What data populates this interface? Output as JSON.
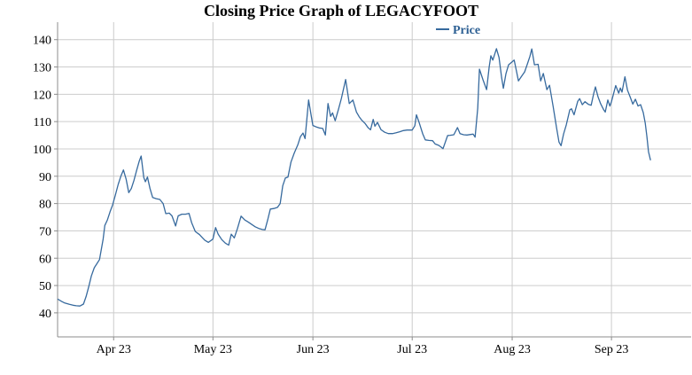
{
  "page": {
    "title": "Closing Price Graph of LEGACYFOOT",
    "legend": {
      "label": "Price"
    }
  },
  "chart_data": {
    "type": "line",
    "title": "Closing Price Graph of LEGACYFOOT",
    "xlabel": "",
    "ylabel": "",
    "x_unit": "days since Apr 1 2023 (series spans mid-Mar 2023 to mid-Sep 2023)",
    "grid": true,
    "legend_position": "top-center",
    "y_ticks": [
      40,
      50,
      60,
      70,
      80,
      90,
      100,
      110,
      120,
      130,
      140
    ],
    "x_ticks": [
      {
        "label": "Apr 23",
        "d": 0
      },
      {
        "label": "May 23",
        "d": 30.3
      },
      {
        "label": "Jun 23",
        "d": 60.8
      },
      {
        "label": "Jul 23",
        "d": 91.1
      },
      {
        "label": "Aug 23",
        "d": 121.6
      },
      {
        "label": "Sep 23",
        "d": 151.9
      }
    ],
    "ylim": [
      31.2,
      146.4
    ],
    "xlim": [
      -17.1,
      176.2
    ],
    "colors": {
      "line": "#376a9e",
      "legend_text": "#2c5f93",
      "grid": "#cccccc",
      "axis": "#8c8c8c",
      "tick_text": "#000000"
    },
    "series": [
      {
        "name": "Price",
        "color": "#376a9e",
        "points": [
          [
            -17.0,
            45.0
          ],
          [
            -15.9,
            44.2
          ],
          [
            -14.9,
            43.6
          ],
          [
            -13.5,
            43.1
          ],
          [
            -12.4,
            42.8
          ],
          [
            -11.4,
            42.6
          ],
          [
            -10.3,
            42.5
          ],
          [
            -9.2,
            43.2
          ],
          [
            -8.4,
            46.0
          ],
          [
            -7.6,
            49.5
          ],
          [
            -6.8,
            53.5
          ],
          [
            -5.9,
            56.5
          ],
          [
            -5.1,
            58.0
          ],
          [
            -4.3,
            59.5
          ],
          [
            -3.2,
            67.0
          ],
          [
            -2.7,
            72.0
          ],
          [
            -1.9,
            74.0
          ],
          [
            -1.1,
            77.0
          ],
          [
            -0.3,
            79.5
          ],
          [
            0.5,
            83.0
          ],
          [
            1.4,
            87.0
          ],
          [
            2.2,
            90.0
          ],
          [
            3.0,
            92.3
          ],
          [
            3.8,
            89.0
          ],
          [
            4.6,
            84.0
          ],
          [
            5.4,
            85.5
          ],
          [
            6.2,
            88.5
          ],
          [
            7.0,
            92.0
          ],
          [
            7.8,
            95.5
          ],
          [
            8.4,
            97.4
          ],
          [
            9.2,
            89.5
          ],
          [
            9.7,
            88.0
          ],
          [
            10.3,
            89.7
          ],
          [
            11.1,
            85.5
          ],
          [
            11.9,
            82.2
          ],
          [
            13.0,
            81.8
          ],
          [
            14.1,
            81.5
          ],
          [
            15.1,
            80.0
          ],
          [
            15.9,
            76.3
          ],
          [
            17.0,
            76.5
          ],
          [
            17.8,
            75.5
          ],
          [
            18.9,
            71.8
          ],
          [
            19.7,
            75.5
          ],
          [
            20.8,
            76.1
          ],
          [
            21.9,
            76.1
          ],
          [
            23.0,
            76.4
          ],
          [
            23.8,
            73.0
          ],
          [
            24.9,
            69.8
          ],
          [
            26.2,
            68.6
          ],
          [
            27.0,
            67.6
          ],
          [
            27.8,
            66.6
          ],
          [
            28.9,
            65.8
          ],
          [
            30.3,
            67.0
          ],
          [
            31.1,
            71.2
          ],
          [
            31.9,
            68.8
          ],
          [
            33.0,
            66.8
          ],
          [
            34.1,
            65.5
          ],
          [
            35.1,
            64.8
          ],
          [
            35.9,
            68.8
          ],
          [
            36.8,
            67.4
          ],
          [
            37.8,
            71.0
          ],
          [
            38.9,
            75.4
          ],
          [
            40.0,
            74.0
          ],
          [
            41.1,
            73.2
          ],
          [
            42.2,
            72.3
          ],
          [
            43.2,
            71.5
          ],
          [
            44.3,
            70.9
          ],
          [
            45.4,
            70.5
          ],
          [
            46.2,
            70.4
          ],
          [
            47.0,
            74.0
          ],
          [
            47.8,
            78.0
          ],
          [
            48.9,
            78.2
          ],
          [
            50.0,
            78.6
          ],
          [
            50.8,
            80.0
          ],
          [
            51.6,
            86.5
          ],
          [
            52.4,
            89.4
          ],
          [
            53.2,
            89.7
          ],
          [
            54.1,
            95.2
          ],
          [
            55.1,
            98.5
          ],
          [
            56.2,
            101.5
          ],
          [
            57.0,
            104.5
          ],
          [
            57.8,
            105.8
          ],
          [
            58.4,
            103.8
          ],
          [
            59.5,
            117.9
          ],
          [
            60.3,
            112.0
          ],
          [
            60.8,
            108.6
          ],
          [
            61.9,
            108.0
          ],
          [
            62.7,
            107.7
          ],
          [
            63.8,
            107.5
          ],
          [
            64.6,
            105.1
          ],
          [
            65.4,
            116.6
          ],
          [
            66.2,
            111.9
          ],
          [
            66.8,
            113.2
          ],
          [
            67.6,
            110.3
          ],
          [
            68.6,
            114.5
          ],
          [
            69.5,
            118.5
          ],
          [
            70.8,
            125.4
          ],
          [
            71.9,
            116.6
          ],
          [
            73.0,
            117.9
          ],
          [
            74.1,
            113.5
          ],
          [
            74.9,
            111.8
          ],
          [
            75.7,
            110.5
          ],
          [
            76.8,
            109.2
          ],
          [
            77.6,
            107.8
          ],
          [
            78.4,
            107.0
          ],
          [
            79.2,
            110.8
          ],
          [
            79.7,
            108.3
          ],
          [
            80.5,
            109.7
          ],
          [
            81.6,
            107.0
          ],
          [
            82.7,
            106.1
          ],
          [
            83.8,
            105.6
          ],
          [
            85.1,
            105.6
          ],
          [
            86.2,
            105.9
          ],
          [
            87.3,
            106.3
          ],
          [
            88.4,
            106.7
          ],
          [
            89.5,
            106.9
          ],
          [
            91.1,
            106.9
          ],
          [
            91.9,
            108.5
          ],
          [
            92.4,
            112.5
          ],
          [
            93.2,
            109.7
          ],
          [
            94.3,
            105.5
          ],
          [
            95.1,
            103.3
          ],
          [
            96.2,
            103.1
          ],
          [
            97.3,
            103.0
          ],
          [
            98.1,
            101.8
          ],
          [
            99.2,
            101.3
          ],
          [
            100.0,
            100.6
          ],
          [
            100.5,
            100.1
          ],
          [
            101.9,
            104.9
          ],
          [
            102.7,
            105.0
          ],
          [
            103.8,
            105.2
          ],
          [
            104.9,
            107.8
          ],
          [
            105.7,
            105.6
          ],
          [
            106.8,
            105.2
          ],
          [
            107.8,
            105.1
          ],
          [
            108.9,
            105.3
          ],
          [
            109.7,
            105.4
          ],
          [
            110.3,
            104.3
          ],
          [
            111.1,
            115.0
          ],
          [
            111.6,
            129.2
          ],
          [
            112.7,
            125.3
          ],
          [
            113.8,
            121.7
          ],
          [
            114.6,
            130.0
          ],
          [
            115.1,
            134.1
          ],
          [
            115.7,
            132.5
          ],
          [
            116.8,
            136.7
          ],
          [
            117.6,
            133.5
          ],
          [
            118.4,
            126.0
          ],
          [
            118.9,
            122.2
          ],
          [
            119.7,
            127.5
          ],
          [
            120.5,
            130.8
          ],
          [
            121.6,
            131.9
          ],
          [
            122.2,
            132.5
          ],
          [
            123.0,
            128.0
          ],
          [
            123.5,
            124.9
          ],
          [
            124.6,
            126.8
          ],
          [
            125.4,
            128.2
          ],
          [
            126.2,
            131.0
          ],
          [
            127.0,
            133.8
          ],
          [
            127.6,
            136.6
          ],
          [
            128.4,
            130.8
          ],
          [
            129.5,
            131.0
          ],
          [
            130.3,
            124.9
          ],
          [
            131.1,
            127.6
          ],
          [
            132.2,
            121.7
          ],
          [
            133.0,
            123.3
          ],
          [
            134.1,
            115.5
          ],
          [
            135.1,
            108.0
          ],
          [
            135.9,
            102.5
          ],
          [
            136.5,
            101.2
          ],
          [
            137.3,
            105.5
          ],
          [
            138.1,
            108.8
          ],
          [
            139.2,
            114.3
          ],
          [
            139.7,
            114.7
          ],
          [
            140.5,
            112.5
          ],
          [
            141.6,
            117.4
          ],
          [
            142.2,
            118.4
          ],
          [
            143.0,
            116.2
          ],
          [
            143.8,
            117.3
          ],
          [
            144.9,
            116.3
          ],
          [
            145.7,
            116.0
          ],
          [
            146.5,
            120.3
          ],
          [
            147.0,
            122.7
          ],
          [
            147.8,
            119.0
          ],
          [
            148.6,
            116.5
          ],
          [
            149.5,
            114.4
          ],
          [
            150.0,
            113.5
          ],
          [
            150.8,
            117.9
          ],
          [
            151.4,
            115.7
          ],
          [
            151.9,
            117.3
          ],
          [
            152.7,
            121.0
          ],
          [
            153.2,
            123.2
          ],
          [
            154.1,
            120.4
          ],
          [
            154.6,
            122.3
          ],
          [
            155.1,
            120.8
          ],
          [
            156.0,
            126.4
          ],
          [
            156.8,
            121.5
          ],
          [
            157.6,
            119.0
          ],
          [
            158.4,
            116.4
          ],
          [
            159.2,
            118.2
          ],
          [
            160.0,
            115.7
          ],
          [
            160.8,
            116.2
          ],
          [
            161.6,
            113.3
          ],
          [
            162.2,
            109.5
          ],
          [
            162.7,
            104.5
          ],
          [
            163.2,
            99.0
          ],
          [
            163.8,
            96.0
          ]
        ]
      }
    ]
  }
}
